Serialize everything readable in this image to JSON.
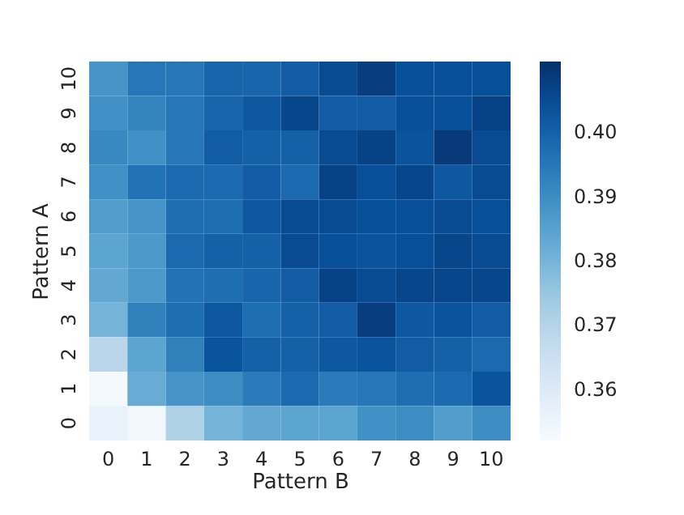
{
  "chart_data": {
    "type": "heatmap",
    "xlabel": "Pattern B",
    "ylabel": "Pattern A",
    "categories": [
      "0",
      "1",
      "2",
      "3",
      "4",
      "5",
      "6",
      "7",
      "8",
      "9",
      "10"
    ],
    "y_categories": [
      "10",
      "9",
      "8",
      "7",
      "6",
      "5",
      "4",
      "3",
      "2",
      "1",
      "0"
    ],
    "cells": [
      [
        0.388,
        0.395,
        0.395,
        0.399,
        0.399,
        0.401,
        0.405,
        0.408,
        0.404,
        0.404,
        0.404
      ],
      [
        0.389,
        0.392,
        0.395,
        0.399,
        0.402,
        0.406,
        0.401,
        0.401,
        0.404,
        0.404,
        0.407
      ],
      [
        0.391,
        0.389,
        0.395,
        0.401,
        0.4,
        0.4,
        0.405,
        0.407,
        0.403,
        0.409,
        0.405
      ],
      [
        0.389,
        0.396,
        0.398,
        0.398,
        0.401,
        0.398,
        0.407,
        0.404,
        0.406,
        0.402,
        0.405
      ],
      [
        0.386,
        0.388,
        0.397,
        0.397,
        0.402,
        0.405,
        0.405,
        0.404,
        0.404,
        0.405,
        0.404
      ],
      [
        0.384,
        0.387,
        0.398,
        0.4,
        0.4,
        0.405,
        0.404,
        0.403,
        0.404,
        0.406,
        0.405
      ],
      [
        0.383,
        0.387,
        0.396,
        0.397,
        0.399,
        0.401,
        0.407,
        0.405,
        0.406,
        0.406,
        0.406
      ],
      [
        0.38,
        0.393,
        0.397,
        0.402,
        0.397,
        0.4,
        0.401,
        0.408,
        0.402,
        0.403,
        0.401
      ],
      [
        0.369,
        0.384,
        0.393,
        0.403,
        0.4,
        0.4,
        0.402,
        0.403,
        0.401,
        0.4,
        0.398
      ],
      [
        0.353,
        0.382,
        0.388,
        0.39,
        0.394,
        0.398,
        0.394,
        0.395,
        0.397,
        0.398,
        0.403
      ],
      [
        0.356,
        0.354,
        0.371,
        0.38,
        0.383,
        0.384,
        0.384,
        0.389,
        0.39,
        0.386,
        0.39
      ]
    ],
    "clim": [
      0.352,
      0.411
    ],
    "cticks": [
      0.36,
      0.37,
      0.38,
      0.39,
      {
        "value": 0.4,
        "label": "0.40"
      }
    ]
  }
}
